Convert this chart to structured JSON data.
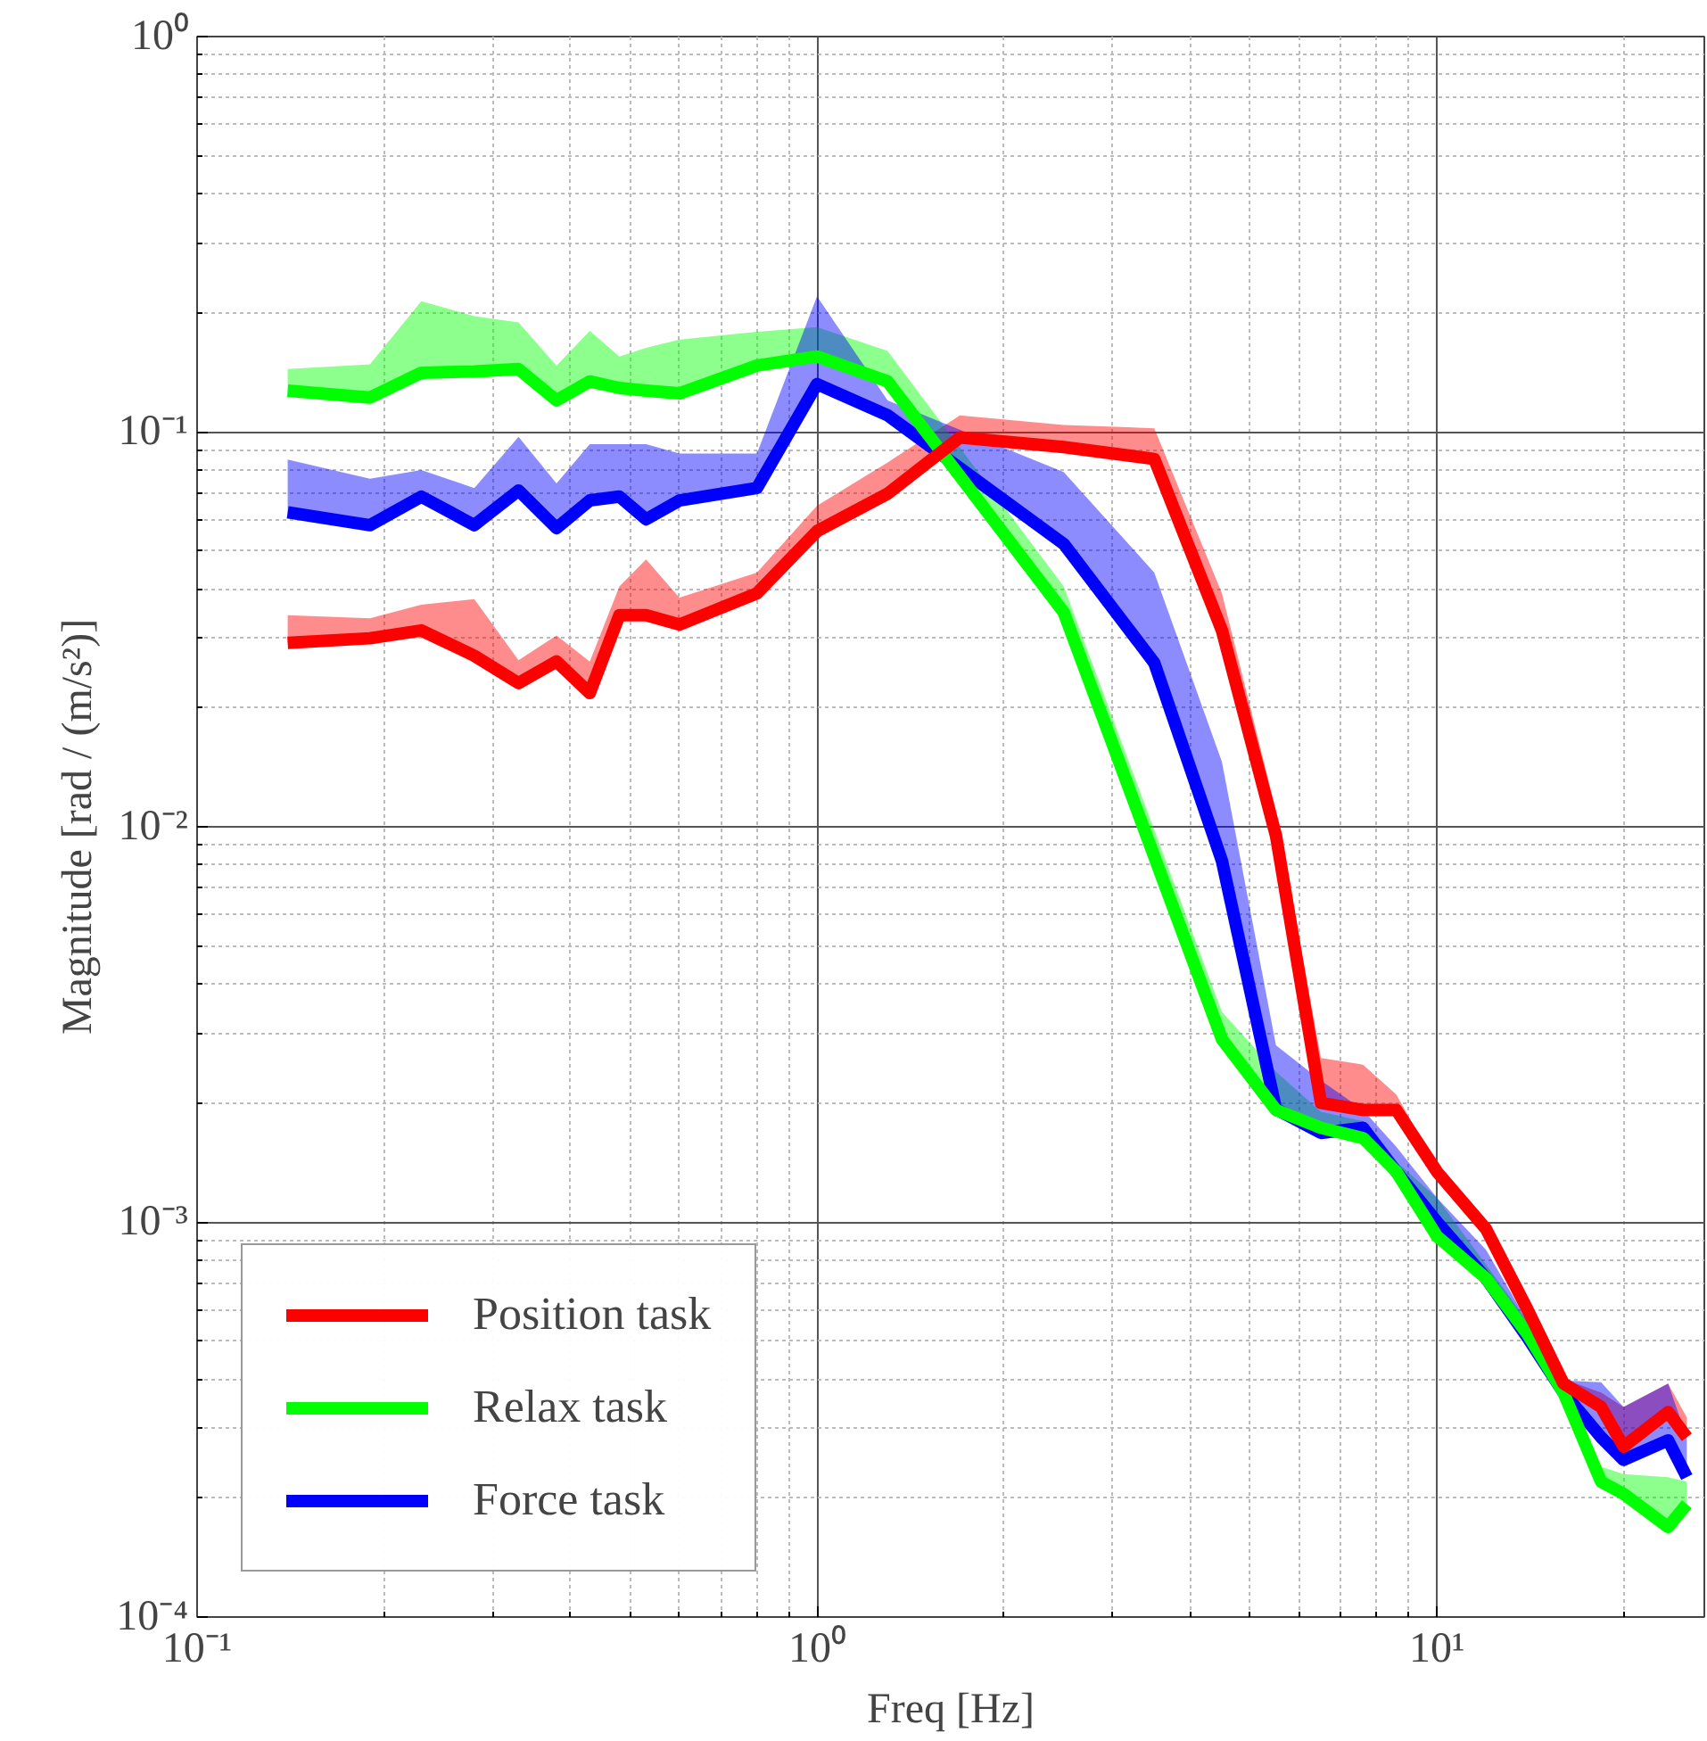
{
  "chart_data": {
    "type": "line",
    "xlabel": "Freq [Hz]",
    "ylabel": "Magnitude [rad / (m/s²)]",
    "log": "xy",
    "grid": true,
    "legend": "bottom left",
    "xlim": [
      0.1,
      27
    ],
    "ylim": [
      0.0001,
      1
    ],
    "xticks": [
      {
        "value": 0.1,
        "label": "10⁻¹"
      },
      {
        "value": 1,
        "label": "10⁰"
      },
      {
        "value": 10,
        "label": "10¹"
      }
    ],
    "yticks": [
      {
        "value": 0.0001,
        "label": "10⁻⁴"
      },
      {
        "value": 0.001,
        "label": "10⁻³"
      },
      {
        "value": 0.01,
        "label": "10⁻²"
      },
      {
        "value": 0.1,
        "label": "10⁻¹"
      },
      {
        "value": 1,
        "label": "10⁰"
      }
    ],
    "series": [
      {
        "name": "Position task",
        "color": "#ff0000",
        "x": [
          0.14,
          0.19,
          0.23,
          0.28,
          0.33,
          0.38,
          0.43,
          0.48,
          0.53,
          0.6,
          0.8,
          1.0,
          1.3,
          1.7,
          2.5,
          3.5,
          4.5,
          5.5,
          6.5,
          7.6,
          8.6,
          10,
          12,
          14,
          16,
          18.4,
          20,
          23.6,
          25.3
        ],
        "values": [
          0.0292,
          0.03,
          0.0314,
          0.0271,
          0.0231,
          0.0262,
          0.0218,
          0.0343,
          0.0343,
          0.0325,
          0.039,
          0.056,
          0.0697,
          0.0967,
          0.0914,
          0.0853,
          0.0314,
          0.0095,
          0.002,
          0.00192,
          0.00192,
          0.00134,
          0.00096,
          0.0006,
          0.00039,
          0.00034,
          0.00027,
          0.00033,
          0.000285
        ],
        "lower": [
          0.0292,
          0.03,
          0.0314,
          0.0271,
          0.0231,
          0.0262,
          0.0218,
          0.0343,
          0.0343,
          0.0325,
          0.039,
          0.056,
          0.0697,
          0.0967,
          0.0914,
          0.0853,
          0.0314,
          0.0095,
          0.002,
          0.00192,
          0.00192,
          0.00134,
          0.00096,
          0.0006,
          0.00039,
          0.00034,
          0.00027,
          0.00033,
          0.000285
        ],
        "upper": [
          0.0343,
          0.0337,
          0.0365,
          0.0377,
          0.0264,
          0.0305,
          0.0262,
          0.0406,
          0.0475,
          0.038,
          0.044,
          0.065,
          0.0836,
          0.11,
          0.104,
          0.102,
          0.039,
          0.011,
          0.0026,
          0.0025,
          0.0021,
          0.00138,
          0.001,
          0.00063,
          0.0004,
          0.00037,
          0.00034,
          0.00039,
          0.00032
        ]
      },
      {
        "name": "Relax task",
        "color": "#00ff00",
        "x": [
          0.14,
          0.19,
          0.23,
          0.28,
          0.33,
          0.38,
          0.43,
          0.48,
          0.53,
          0.6,
          0.8,
          1.0,
          1.3,
          2.5,
          4.5,
          5.5,
          6.5,
          7.6,
          8.6,
          10,
          12,
          14,
          16,
          18.4,
          20,
          23.6,
          25.3
        ],
        "values": [
          0.127,
          0.122,
          0.141,
          0.142,
          0.144,
          0.12,
          0.134,
          0.129,
          0.127,
          0.125,
          0.147,
          0.155,
          0.134,
          0.0349,
          0.0029,
          0.00192,
          0.00173,
          0.00163,
          0.00134,
          0.00092,
          0.00072,
          0.00052,
          0.00037,
          0.00022,
          0.000205,
          0.000169,
          0.000193
        ],
        "lower": [
          0.127,
          0.122,
          0.141,
          0.142,
          0.144,
          0.12,
          0.134,
          0.129,
          0.127,
          0.125,
          0.147,
          0.155,
          0.134,
          0.0349,
          0.0029,
          0.00192,
          0.00173,
          0.00163,
          0.00134,
          0.00092,
          0.00072,
          0.00052,
          0.00037,
          0.00022,
          0.000205,
          0.000169,
          0.000193
        ],
        "upper": [
          0.144,
          0.148,
          0.214,
          0.196,
          0.189,
          0.147,
          0.18,
          0.155,
          0.163,
          0.171,
          0.179,
          0.184,
          0.16,
          0.0406,
          0.0034,
          0.0024,
          0.0019,
          0.0018,
          0.00142,
          0.00115,
          0.00078,
          0.00056,
          0.00039,
          0.00024,
          0.00023,
          0.000226,
          0.00022
        ]
      },
      {
        "name": "Force task",
        "color": "#0000ff",
        "x": [
          0.14,
          0.19,
          0.23,
          0.28,
          0.33,
          0.38,
          0.43,
          0.48,
          0.53,
          0.6,
          0.8,
          1.0,
          1.3,
          2.5,
          3.5,
          4.5,
          5.5,
          6.5,
          7.6,
          8.6,
          10,
          12,
          14,
          16,
          18.4,
          20,
          23.6,
          25.3
        ],
        "values": [
          0.0625,
          0.058,
          0.0685,
          0.058,
          0.071,
          0.057,
          0.067,
          0.0685,
          0.06,
          0.067,
          0.072,
          0.132,
          0.11,
          0.052,
          0.026,
          0.0082,
          0.00193,
          0.00168,
          0.00173,
          0.00134,
          0.001,
          0.00072,
          0.00051,
          0.00037,
          0.000285,
          0.00025,
          0.00028,
          0.000226
        ],
        "lower": [
          0.0625,
          0.058,
          0.0685,
          0.058,
          0.071,
          0.057,
          0.067,
          0.0685,
          0.06,
          0.067,
          0.072,
          0.132,
          0.11,
          0.052,
          0.026,
          0.0082,
          0.00193,
          0.00168,
          0.00173,
          0.00134,
          0.001,
          0.00072,
          0.00051,
          0.00037,
          0.000285,
          0.00025,
          0.00028,
          0.000226
        ],
        "upper": [
          0.085,
          0.076,
          0.08,
          0.072,
          0.097,
          0.074,
          0.093,
          0.093,
          0.093,
          0.088,
          0.088,
          0.22,
          0.12,
          0.079,
          0.044,
          0.0146,
          0.0028,
          0.00228,
          0.00192,
          0.00155,
          0.00115,
          0.00085,
          0.00056,
          0.000397,
          0.000393,
          0.00034,
          0.00039,
          0.000285
        ]
      }
    ]
  }
}
